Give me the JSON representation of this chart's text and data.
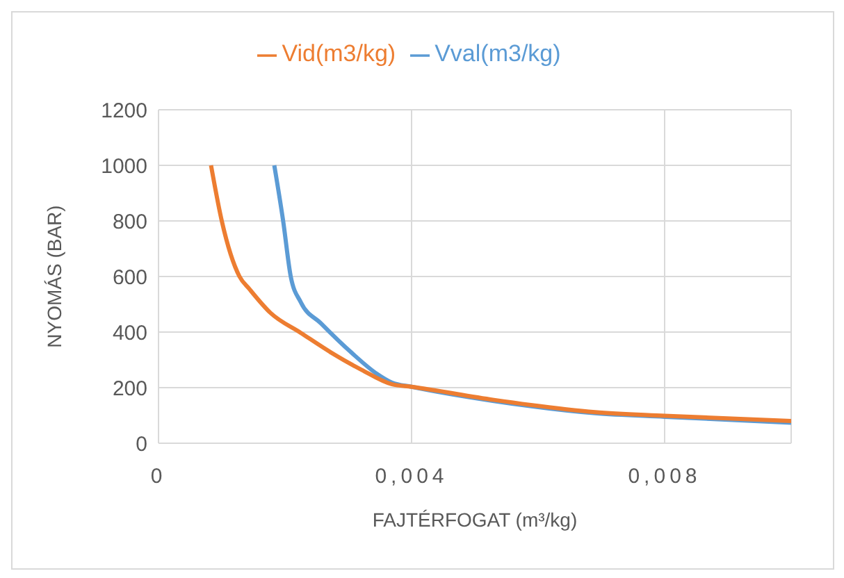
{
  "chart_data": {
    "type": "line",
    "xlabel": "FAJTÉRFOGAT (m³/kg)",
    "ylabel": "NYOMÁS (BAR)",
    "xlim": [
      0,
      0.01
    ],
    "xticks": [
      0,
      {
        "value": 0.004,
        "label": "0,004"
      },
      {
        "value": 0.008,
        "label": "0,008"
      }
    ],
    "ylim": [
      0,
      1200
    ],
    "yticks": [
      0,
      200,
      400,
      600,
      800,
      1000,
      1200
    ],
    "grid": true,
    "legend": "top",
    "marker": "none",
    "line_style": "solid",
    "series": [
      {
        "name": "Vval(m3/kg)",
        "color": "#5b9bd5",
        "x": [
          0.00183,
          0.00197,
          0.00209,
          0.00225,
          0.00257,
          0.00305,
          0.00345,
          0.00369,
          0.004,
          0.0053,
          0.0069,
          0.008,
          0.01
        ],
        "values": [
          1000,
          800,
          600,
          507,
          431,
          326,
          250,
          218,
          203,
          152,
          108,
          95,
          74
        ]
      },
      {
        "name": "Vid(m3/kg)",
        "color": "#ed7d31",
        "x": [
          0.00083,
          0.001,
          0.00128,
          0.00144,
          0.00177,
          0.00225,
          0.00273,
          0.00321,
          0.00369,
          0.004,
          0.0053,
          0.0069,
          0.008,
          0.01
        ],
        "values": [
          1000,
          800,
          600,
          554,
          469,
          397,
          326,
          264,
          212,
          203,
          156,
          112,
          99,
          80
        ]
      }
    ]
  }
}
